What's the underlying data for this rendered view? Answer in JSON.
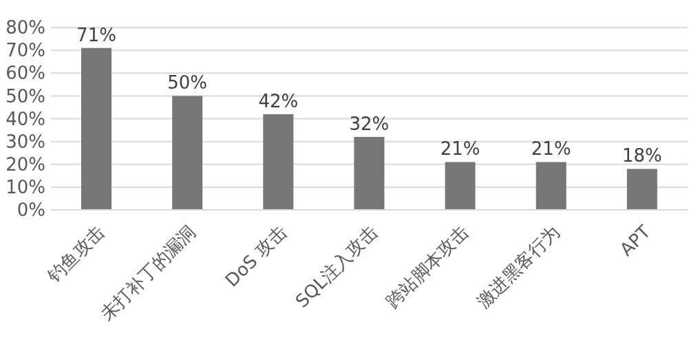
{
  "chart_data": {
    "type": "bar",
    "categories": [
      "钓鱼攻击",
      "未打补丁的漏洞",
      "DoS 攻击",
      "SQL注入攻击",
      "跨站脚本攻击",
      "激进黑客行为",
      "APT"
    ],
    "values": [
      71,
      50,
      42,
      32,
      21,
      21,
      18
    ],
    "value_labels": [
      "71%",
      "50%",
      "42%",
      "32%",
      "21%",
      "21%",
      "18%"
    ],
    "color": "#767676",
    "ylim": [
      0,
      80
    ],
    "yticks": [
      {
        "value": 0,
        "label": "0%"
      },
      {
        "value": 10,
        "label": "10%"
      },
      {
        "value": 20,
        "label": "20%"
      },
      {
        "value": 30,
        "label": "30%"
      },
      {
        "value": 40,
        "label": "40%"
      },
      {
        "value": 50,
        "label": "50%"
      },
      {
        "value": 60,
        "label": "60%"
      },
      {
        "value": 70,
        "label": "70%"
      },
      {
        "value": 80,
        "label": "80%"
      }
    ],
    "grid": "y"
  }
}
